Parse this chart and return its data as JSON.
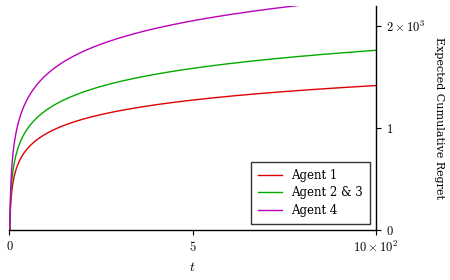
{
  "xlabel": "t",
  "ylabel": "Expected Cumulative Regret",
  "xlim": [
    0,
    1000
  ],
  "ylim": [
    0,
    2200
  ],
  "agent1_color": "#dd0000",
  "agent23_color": "#00aa00",
  "agent4_color": "#bb00bb",
  "agent1_label": "Agent 1",
  "agent23_label": "Agent 2 & 3",
  "agent4_label": "Agent 4",
  "agent1_scale": 205.0,
  "agent23_scale": 255.0,
  "agent4_scale": 330.0,
  "n_points": 1000,
  "legend_loc": "lower right",
  "font_family": "serif"
}
